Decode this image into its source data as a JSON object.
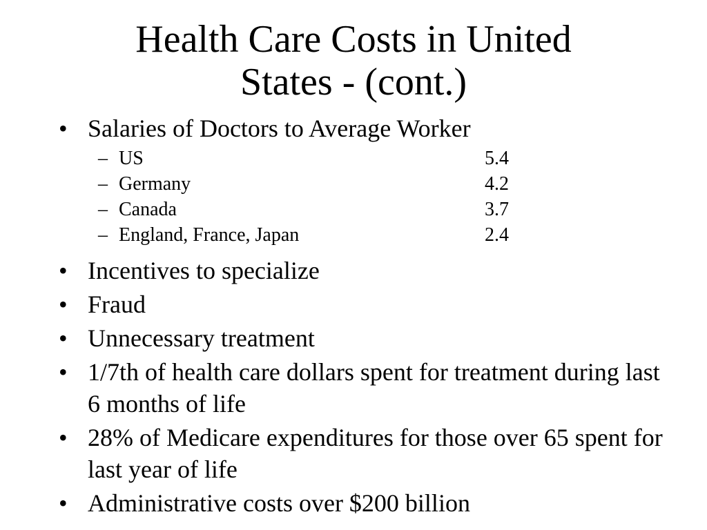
{
  "slide": {
    "title_line1": "Health Care Costs in United",
    "title_line2": "States - (cont.)",
    "bullet_symbol": "•",
    "dash_symbol": "–",
    "bullets": [
      {
        "text": "Salaries of Doctors to Average Worker",
        "sub": [
          {
            "label": "US",
            "value": "5.4"
          },
          {
            "label": "Germany",
            "value": "4.2"
          },
          {
            "label": "Canada",
            "value": "3.7"
          },
          {
            "label": "England, France, Japan",
            "value": "2.4"
          }
        ]
      },
      {
        "text": "Incentives to specialize"
      },
      {
        "text": "Fraud"
      },
      {
        "text": "Unnecessary treatment"
      },
      {
        "text": "1/7th of health care dollars spent for treatment during last 6 months of life"
      },
      {
        "text": "28% of Medicare expenditures for those over 65 spent for last year of life"
      },
      {
        "text": "Administrative costs over $200 billion"
      }
    ]
  }
}
